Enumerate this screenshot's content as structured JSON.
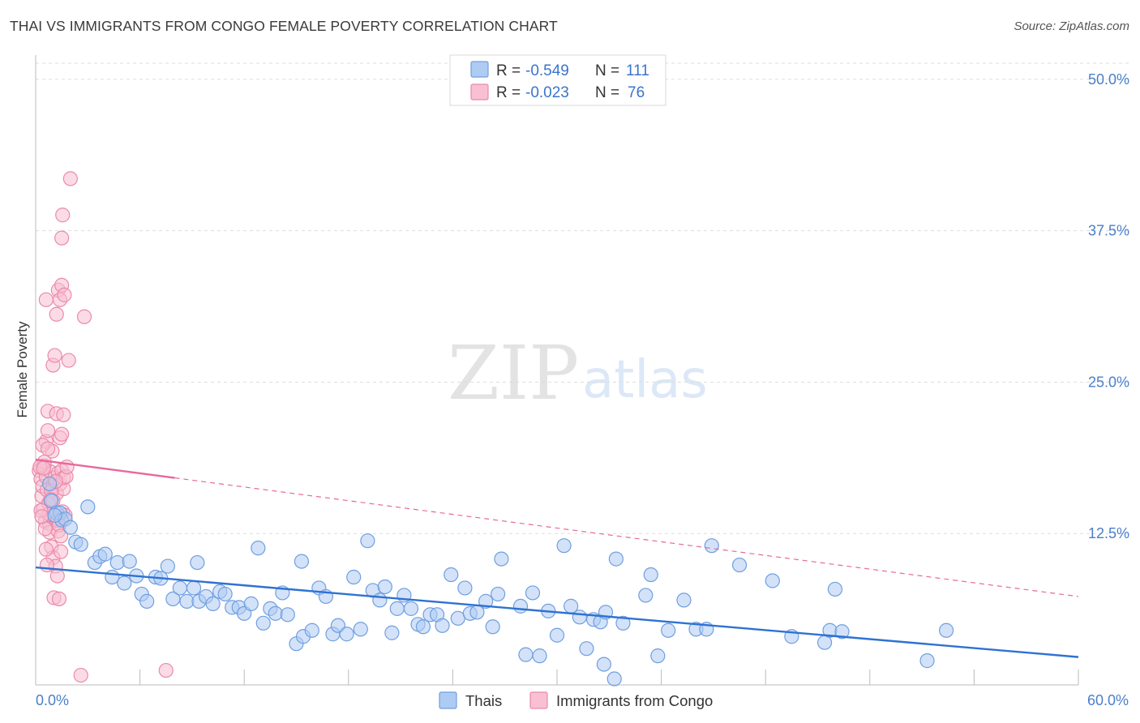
{
  "title": "THAI VS IMMIGRANTS FROM CONGO FEMALE POVERTY CORRELATION CHART",
  "source": "Source: ZipAtlas.com",
  "watermark": {
    "zip": "ZIP",
    "atlas": "atlas"
  },
  "colors": {
    "thai_fill": "#aecbf3",
    "thai_stroke": "#6f9fe0",
    "thai_line": "#2e72d2",
    "congo_fill": "#f8c0d2",
    "congo_stroke": "#ec89a9",
    "congo_line": "#e8689a",
    "grid": "#dddddd",
    "axis": "#bbbbbb",
    "tick_text": "#4a7fcb"
  },
  "legend": {
    "rows": [
      {
        "r_label": "R =",
        "r_value": "-0.549",
        "n_label": "N =",
        "n_value": "111"
      },
      {
        "r_label": "R =",
        "r_value": "-0.023",
        "n_label": "N =",
        "n_value": "76"
      }
    ]
  },
  "bottom_legend": [
    "Thais",
    "Immigrants from Congo"
  ],
  "chart_data": {
    "type": "scatter",
    "title": "THAI VS IMMIGRANTS FROM CONGO FEMALE POVERTY CORRELATION CHART",
    "xlabel": "",
    "ylabel": "Female Poverty",
    "xlim": [
      0,
      60
    ],
    "ylim": [
      0,
      52
    ],
    "x_tick_labels": [
      {
        "value": 0,
        "label": "0.0%"
      },
      {
        "value": 60,
        "label": "60.0%"
      }
    ],
    "x_minor_ticks": [
      6,
      12,
      18,
      24,
      30,
      36,
      42,
      48,
      54
    ],
    "y_ticks": [
      {
        "value": 12.5,
        "label": "12.5%"
      },
      {
        "value": 25,
        "label": "25.0%"
      },
      {
        "value": 37.5,
        "label": "37.5%"
      },
      {
        "value": 50,
        "label": "50.0%"
      }
    ],
    "series": [
      {
        "name": "Thais",
        "r": -0.549,
        "n": 111,
        "trend": {
          "x0": 0,
          "y0": 9.7,
          "x1": 60,
          "y1": 2.3,
          "solid_until": 60
        },
        "points": [
          [
            0.9,
            15.2
          ],
          [
            1.2,
            14.2
          ],
          [
            1.4,
            14.2
          ],
          [
            1.5,
            13.6
          ],
          [
            1.7,
            13.7
          ],
          [
            2.0,
            13.0
          ],
          [
            2.3,
            11.8
          ],
          [
            2.6,
            11.6
          ],
          [
            3.0,
            14.7
          ],
          [
            3.4,
            10.1
          ],
          [
            3.7,
            10.6
          ],
          [
            4.0,
            10.8
          ],
          [
            4.4,
            8.9
          ],
          [
            4.7,
            10.1
          ],
          [
            5.1,
            8.4
          ],
          [
            5.4,
            10.2
          ],
          [
            5.8,
            9.0
          ],
          [
            6.1,
            7.5
          ],
          [
            6.4,
            6.9
          ],
          [
            6.9,
            8.9
          ],
          [
            7.2,
            8.8
          ],
          [
            7.6,
            9.8
          ],
          [
            7.9,
            7.1
          ],
          [
            8.3,
            8.0
          ],
          [
            8.7,
            6.9
          ],
          [
            9.1,
            8.0
          ],
          [
            9.4,
            6.9
          ],
          [
            9.3,
            10.1
          ],
          [
            9.8,
            7.3
          ],
          [
            10.2,
            6.7
          ],
          [
            10.6,
            7.7
          ],
          [
            10.9,
            7.5
          ],
          [
            11.3,
            6.4
          ],
          [
            11.7,
            6.4
          ],
          [
            12.0,
            5.9
          ],
          [
            12.4,
            6.7
          ],
          [
            12.8,
            11.3
          ],
          [
            13.1,
            5.1
          ],
          [
            13.5,
            6.3
          ],
          [
            13.8,
            5.9
          ],
          [
            14.2,
            7.6
          ],
          [
            14.5,
            5.8
          ],
          [
            15.3,
            10.2
          ],
          [
            15.0,
            3.4
          ],
          [
            15.4,
            4.0
          ],
          [
            15.9,
            4.5
          ],
          [
            16.3,
            8.0
          ],
          [
            16.7,
            7.3
          ],
          [
            17.1,
            4.2
          ],
          [
            17.4,
            4.9
          ],
          [
            17.9,
            4.2
          ],
          [
            18.3,
            8.9
          ],
          [
            18.7,
            4.6
          ],
          [
            19.1,
            11.9
          ],
          [
            19.4,
            7.8
          ],
          [
            19.8,
            7.0
          ],
          [
            20.1,
            8.1
          ],
          [
            20.5,
            4.3
          ],
          [
            20.8,
            6.3
          ],
          [
            21.2,
            7.4
          ],
          [
            21.6,
            6.3
          ],
          [
            22.0,
            5.0
          ],
          [
            22.3,
            4.8
          ],
          [
            22.7,
            5.8
          ],
          [
            23.1,
            5.8
          ],
          [
            23.4,
            4.9
          ],
          [
            23.9,
            9.1
          ],
          [
            24.3,
            5.5
          ],
          [
            24.7,
            8.0
          ],
          [
            25.0,
            5.9
          ],
          [
            25.4,
            6.0
          ],
          [
            25.9,
            6.9
          ],
          [
            26.3,
            4.8
          ],
          [
            26.6,
            7.5
          ],
          [
            26.8,
            10.4
          ],
          [
            27.9,
            6.5
          ],
          [
            28.2,
            2.5
          ],
          [
            28.6,
            7.6
          ],
          [
            29.0,
            2.4
          ],
          [
            29.5,
            6.1
          ],
          [
            30.0,
            4.1
          ],
          [
            30.4,
            11.5
          ],
          [
            30.8,
            6.5
          ],
          [
            31.3,
            5.6
          ],
          [
            31.7,
            3.0
          ],
          [
            32.1,
            5.4
          ],
          [
            32.5,
            5.2
          ],
          [
            32.8,
            6.0
          ],
          [
            32.7,
            1.7
          ],
          [
            33.4,
            10.4
          ],
          [
            33.8,
            5.1
          ],
          [
            33.3,
            0.5
          ],
          [
            35.1,
            7.4
          ],
          [
            35.4,
            9.1
          ],
          [
            35.8,
            2.4
          ],
          [
            36.4,
            4.5
          ],
          [
            37.3,
            7.0
          ],
          [
            38.0,
            4.6
          ],
          [
            38.6,
            4.6
          ],
          [
            38.9,
            11.5
          ],
          [
            40.5,
            9.9
          ],
          [
            42.4,
            8.6
          ],
          [
            43.5,
            4.0
          ],
          [
            45.4,
            3.5
          ],
          [
            45.7,
            4.5
          ],
          [
            46.4,
            4.4
          ],
          [
            46.0,
            7.9
          ],
          [
            51.3,
            2.0
          ],
          [
            52.4,
            4.5
          ],
          [
            0.8,
            16.6
          ],
          [
            1.1,
            14.0
          ]
        ]
      },
      {
        "name": "Immigrants from Congo",
        "r": -0.023,
        "n": 76,
        "trend": {
          "x0": 0,
          "y0": 18.6,
          "x1": 60,
          "y1": 7.3,
          "solid_until": 8
        },
        "points": [
          [
            0.2,
            17.7
          ],
          [
            0.3,
            17.0
          ],
          [
            0.35,
            15.6
          ],
          [
            0.4,
            16.4
          ],
          [
            0.45,
            14.5
          ],
          [
            0.5,
            18.1
          ],
          [
            0.55,
            13.5
          ],
          [
            0.6,
            17.2
          ],
          [
            0.6,
            20.1
          ],
          [
            0.65,
            16.1
          ],
          [
            0.7,
            22.6
          ],
          [
            0.7,
            21.0
          ],
          [
            0.75,
            15.0
          ],
          [
            0.8,
            13.3
          ],
          [
            0.8,
            12.6
          ],
          [
            0.85,
            17.6
          ],
          [
            0.9,
            14.0
          ],
          [
            0.9,
            11.4
          ],
          [
            0.95,
            19.3
          ],
          [
            1.0,
            16.4
          ],
          [
            1.0,
            10.5
          ],
          [
            1.05,
            7.2
          ],
          [
            1.1,
            17.1
          ],
          [
            1.1,
            13.8
          ],
          [
            1.15,
            9.8
          ],
          [
            1.2,
            22.4
          ],
          [
            1.2,
            15.8
          ],
          [
            1.25,
            9.0
          ],
          [
            1.3,
            17.5
          ],
          [
            1.3,
            12.7
          ],
          [
            1.35,
            7.1
          ],
          [
            1.4,
            20.4
          ],
          [
            1.4,
            16.6
          ],
          [
            1.45,
            11.0
          ],
          [
            1.5,
            20.7
          ],
          [
            1.5,
            17.7
          ],
          [
            1.55,
            14.3
          ],
          [
            1.6,
            22.3
          ],
          [
            1.6,
            16.2
          ],
          [
            1.7,
            14.0
          ],
          [
            1.0,
            26.4
          ],
          [
            1.1,
            27.2
          ],
          [
            0.6,
            31.8
          ],
          [
            1.2,
            30.6
          ],
          [
            1.3,
            32.6
          ],
          [
            1.4,
            31.8
          ],
          [
            1.5,
            33.0
          ],
          [
            1.65,
            32.2
          ],
          [
            1.5,
            36.9
          ],
          [
            1.55,
            38.8
          ],
          [
            1.9,
            26.8
          ],
          [
            2.0,
            41.8
          ],
          [
            2.8,
            30.4
          ],
          [
            1.6,
            17.1
          ],
          [
            1.75,
            17.2
          ],
          [
            1.8,
            18.0
          ],
          [
            0.9,
            16.0
          ],
          [
            1.0,
            15.2
          ],
          [
            0.4,
            19.8
          ],
          [
            0.5,
            18.4
          ],
          [
            0.55,
            12.9
          ],
          [
            0.6,
            11.2
          ],
          [
            0.65,
            9.9
          ],
          [
            0.75,
            14.1
          ],
          [
            0.3,
            14.4
          ],
          [
            0.35,
            13.9
          ],
          [
            1.25,
            13.6
          ],
          [
            1.35,
            13.2
          ],
          [
            1.45,
            12.3
          ],
          [
            0.25,
            18.0
          ],
          [
            0.45,
            17.9
          ],
          [
            0.7,
            19.5
          ],
          [
            0.85,
            15.3
          ],
          [
            1.15,
            16.8
          ],
          [
            2.6,
            0.8
          ],
          [
            7.5,
            1.2
          ]
        ]
      }
    ]
  }
}
